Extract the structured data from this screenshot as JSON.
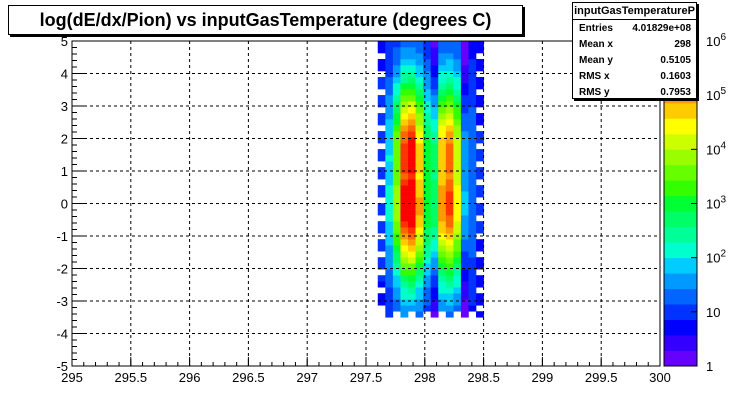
{
  "chart_data": {
    "type": "heatmap",
    "title": "log(dE/dx/Pion) vs inputGasTemperature (degrees C)",
    "xlabel": "",
    "ylabel": "",
    "xlim": [
      295,
      300
    ],
    "ylim": [
      -5,
      5
    ],
    "x_ticks": [
      "295",
      "295.5",
      "296",
      "296.5",
      "297",
      "297.5",
      "298",
      "298.5",
      "299",
      "299.5",
      "300"
    ],
    "y_ticks": [
      "-5",
      "-4",
      "-3",
      "-2",
      "-1",
      "0",
      "1",
      "2",
      "3",
      "4",
      "5"
    ],
    "grid": true,
    "z_scale": "log",
    "z_range": [
      1,
      1000000
    ],
    "z_ticks": [
      "1",
      "10",
      "10^2",
      "10^3",
      "10^4",
      "10^5",
      "10^6"
    ],
    "palette": [
      "#6600ff",
      "#3300ff",
      "#0000ff",
      "#0033ff",
      "#0066ff",
      "#0099ff",
      "#00ccff",
      "#00ffcc",
      "#00ff99",
      "#00ff66",
      "#00ff33",
      "#33ff00",
      "#66ff00",
      "#99ff00",
      "#ccff00",
      "#ffff00",
      "#ffcc00",
      "#ff9900",
      "#ff6600",
      "#ff3300",
      "#ff0000"
    ],
    "x_band": [
      297.6,
      298.5
    ],
    "y_band": [
      -3.5,
      5
    ],
    "hotspots": [
      {
        "x": 297.86,
        "y": 0.0,
        "level": 20
      },
      {
        "x": 297.86,
        "y": 1.4,
        "level": 19
      },
      {
        "x": 298.2,
        "y": 0.0,
        "level": 17
      },
      {
        "x": 298.2,
        "y": 1.4,
        "level": 16
      }
    ]
  },
  "stats": {
    "title": "inputGasTemperatureP",
    "rows": [
      {
        "label": "Entries",
        "value": "4.01829e+08"
      },
      {
        "label": "Mean x",
        "value": "298"
      },
      {
        "label": "Mean y",
        "value": "0.5105"
      },
      {
        "label": "RMS x",
        "value": "0.1603"
      },
      {
        "label": "RMS y",
        "value": "0.7953"
      }
    ]
  }
}
